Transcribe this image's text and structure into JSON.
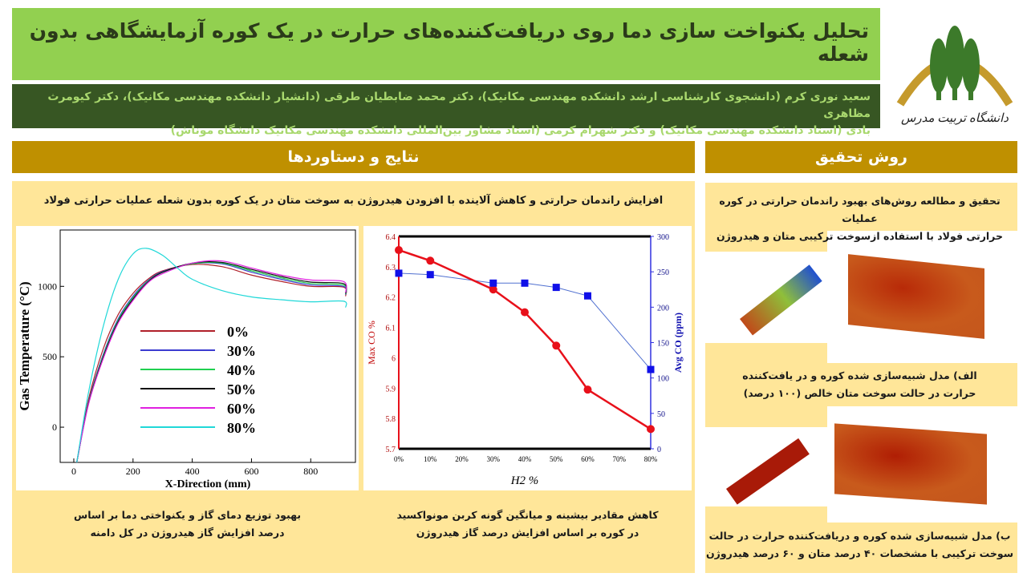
{
  "title": "تحلیل یکنواخت سازی دما روی دریافت‌کننده‌های حرارت در یک کوره آزمایشگاهی بدون شعله",
  "authors": {
    "line1": "سعید نوری کرم (دانشجوی کارشناسی ارشد دانشکده مهندسی مکانیک)، دکتر محمد ضابطیان طرقی (دانشیار دانشکده مهندسی مکانیک)، دکتر کیومرث مظاهری",
    "line2": "بادی (استاد دانشکده مهندسی مکانیک) و دکتر شهرام کرمی (استاد مشاور بین‌المللی دانشکده مهندسی مکانیک دانشگاه موناش)"
  },
  "logo": {
    "text": "دانشگاه تربیت مدرس",
    "colors": {
      "arc": "#c59a2c",
      "trees": "#3c7a2a"
    }
  },
  "results": {
    "header": "نتایج و دستاوردها",
    "subtitle": "افزایش راندمان حرارتی و کاهش آلاینده با افزودن هیدروژن به سوخت متان در یک کوره بدون شعله عملیات حرارتی فولاد",
    "caption_left": {
      "line1": "بهبود توزیع دمای گاز و یکنواختی دما بر اساس",
      "line2": "درصد افزایش گاز هیدروژن در کل دامنه"
    },
    "caption_right": {
      "line1": "کاهش مقادیر بیشینه و میانگین گونه کربن مونواکسید",
      "line2": "در کوره بر اساس افزایش درصد گاز هیدروژن"
    }
  },
  "method": {
    "header": "روش تحقیق",
    "intro": {
      "line1": "تحقیق و مطالعه روش‌های بهبود راندمان حرارتی در کوره عملیات",
      "line2": "حرارتی فولاد با  استفاده ازسوخت ترکیبی متان و هیدروژن"
    },
    "caption_a": {
      "line1": "الف) مدل شبیه‌سازی شده کوره و در یافت‌کننده",
      "line2": "حرارت در حالت سوخت متان خالص (۱۰۰ درصد)"
    },
    "caption_b": {
      "line1": "ب) مدل شبیه‌سازی شده کوره و دریافت‌کننده حرارت در حالت",
      "line2": "سوخت ترکیبی با مشخصات ۴۰ درصد متان و ۶۰ درصد هیدروژن"
    }
  },
  "colors": {
    "title_bg": "#92d050",
    "authors_bg": "#375623",
    "section_bg": "#bf9000",
    "panel_bg": "#ffe699"
  },
  "chart_data": [
    {
      "type": "line",
      "xlabel": "X-Direction (mm)",
      "ylabel": "Gas Temperature (°C)",
      "xlim": [
        -46,
        951
      ],
      "ylim": [
        -250,
        1400
      ],
      "xticks": [
        0,
        200,
        400,
        600,
        800
      ],
      "yticks": [
        0,
        500,
        1000
      ],
      "legend": "center",
      "grid": false,
      "series": [
        {
          "name": "0%",
          "color": "#b0202a",
          "points": [
            [
              10,
              -250
            ],
            [
              50,
              200
            ],
            [
              100,
              560
            ],
            [
              150,
              800
            ],
            [
              200,
              950
            ],
            [
              250,
              1050
            ],
            [
              300,
              1110
            ],
            [
              400,
              1155
            ],
            [
              500,
              1140
            ],
            [
              600,
              1080
            ],
            [
              700,
              1035
            ],
            [
              800,
              1000
            ],
            [
              910,
              995
            ],
            [
              918,
              930
            ]
          ]
        },
        {
          "name": "30%",
          "color": "#3b3bd0",
          "points": [
            [
              10,
              -250
            ],
            [
              50,
              180
            ],
            [
              100,
              520
            ],
            [
              150,
              770
            ],
            [
              200,
              930
            ],
            [
              250,
              1040
            ],
            [
              300,
              1105
            ],
            [
              400,
              1160
            ],
            [
              500,
              1160
            ],
            [
              600,
              1100
            ],
            [
              700,
              1050
            ],
            [
              800,
              1010
            ],
            [
              910,
              1000
            ],
            [
              918,
              940
            ]
          ]
        },
        {
          "name": "40%",
          "color": "#20d050",
          "points": [
            [
              10,
              -250
            ],
            [
              50,
              175
            ],
            [
              100,
              510
            ],
            [
              150,
              760
            ],
            [
              200,
              920
            ],
            [
              250,
              1035
            ],
            [
              300,
              1100
            ],
            [
              400,
              1160
            ],
            [
              500,
              1165
            ],
            [
              600,
              1110
            ],
            [
              700,
              1060
            ],
            [
              800,
              1020
            ],
            [
              910,
              1010
            ],
            [
              918,
              945
            ]
          ]
        },
        {
          "name": "50%",
          "color": "#101010",
          "points": [
            [
              10,
              -250
            ],
            [
              50,
              170
            ],
            [
              100,
              500
            ],
            [
              150,
              750
            ],
            [
              200,
              910
            ],
            [
              250,
              1030
            ],
            [
              300,
              1100
            ],
            [
              400,
              1165
            ],
            [
              500,
              1170
            ],
            [
              600,
              1120
            ],
            [
              700,
              1070
            ],
            [
              800,
              1030
            ],
            [
              910,
              1020
            ],
            [
              918,
              950
            ]
          ]
        },
        {
          "name": "60%",
          "color": "#e020e0",
          "points": [
            [
              10,
              -250
            ],
            [
              50,
              165
            ],
            [
              100,
              490
            ],
            [
              150,
              740
            ],
            [
              200,
              900
            ],
            [
              250,
              1025
            ],
            [
              300,
              1090
            ],
            [
              400,
              1165
            ],
            [
              500,
              1180
            ],
            [
              600,
              1130
            ],
            [
              700,
              1080
            ],
            [
              800,
              1045
            ],
            [
              910,
              1035
            ],
            [
              918,
              955
            ]
          ]
        },
        {
          "name": "80%",
          "color": "#20d8d8",
          "points": [
            [
              10,
              -250
            ],
            [
              50,
              250
            ],
            [
              100,
              720
            ],
            [
              150,
              1050
            ],
            [
              200,
              1230
            ],
            [
              245,
              1270
            ],
            [
              300,
              1220
            ],
            [
              350,
              1130
            ],
            [
              400,
              1050
            ],
            [
              500,
              970
            ],
            [
              600,
              925
            ],
            [
              700,
              905
            ],
            [
              800,
              890
            ],
            [
              910,
              895
            ],
            [
              918,
              850
            ]
          ]
        }
      ]
    },
    {
      "type": "line",
      "xlabel": "H2 %",
      "ylabel": "Max CO %",
      "y2label": "Avg CO (ppm)",
      "categories": [
        "0%",
        "10%",
        "20%",
        "30%",
        "40%",
        "50%",
        "60%",
        "70%",
        "80%"
      ],
      "ylim": [
        5.7,
        6.4
      ],
      "yticks": [
        "5.7",
        "5.8",
        "5.9",
        "6",
        "6.1",
        "6.2",
        "6.3",
        "6.4"
      ],
      "y2lim": [
        0,
        300
      ],
      "y2ticks": [
        "0",
        "50",
        "100",
        "150",
        "200",
        "250",
        "300"
      ],
      "series": [
        {
          "name": "Max CO %",
          "color": "#e8101a",
          "axis": "left",
          "x": [
            0,
            10,
            30,
            40,
            50,
            60,
            80
          ],
          "values": [
            6.355,
            6.32,
            6.225,
            6.15,
            6.04,
            5.895,
            5.765
          ]
        },
        {
          "name": "Avg CO (ppm)",
          "color": "#1010e8",
          "axis": "right",
          "x": [
            0,
            10,
            30,
            40,
            50,
            60,
            80
          ],
          "values": [
            248,
            246,
            234,
            234,
            228,
            216,
            112
          ]
        }
      ]
    }
  ]
}
